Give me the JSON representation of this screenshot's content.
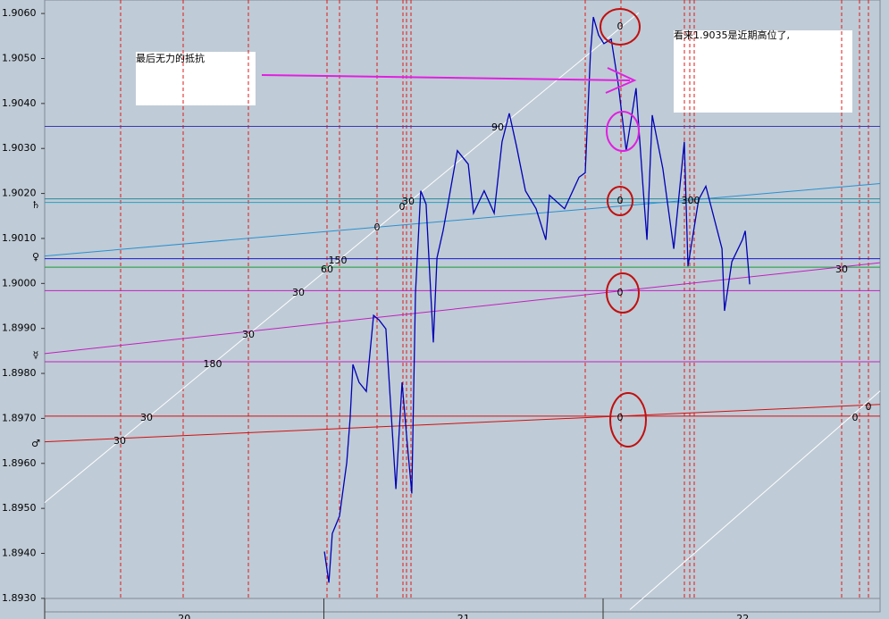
{
  "chart_data": {
    "type": "line",
    "xlim": [
      20,
      22.992
    ],
    "ylim": [
      1.8927,
      1.9063
    ],
    "xticks": [
      20,
      21,
      22
    ],
    "yticks": [
      {
        "value": 1.893,
        "label": "1.8930"
      },
      {
        "value": 1.894,
        "label": "1.8940"
      },
      {
        "value": 1.895,
        "label": "1.8950"
      },
      {
        "value": 1.896,
        "label": "1.8960"
      },
      {
        "value": 1.897,
        "label": "1.8970"
      },
      {
        "value": 1.898,
        "label": "1.8980"
      },
      {
        "value": 1.899,
        "label": "1.8990"
      },
      {
        "value": 1.9,
        "label": "1.9000"
      },
      {
        "value": 1.901,
        "label": "1.9010"
      },
      {
        "value": 1.902,
        "label": "1.9020"
      },
      {
        "value": 1.903,
        "label": "1.9030"
      },
      {
        "value": 1.904,
        "label": "1.9040"
      },
      {
        "value": 1.905,
        "label": "1.9050"
      },
      {
        "value": 1.906,
        "label": "1.9060"
      }
    ],
    "x": [
      21.002,
      21.018,
      21.03,
      21.056,
      21.082,
      21.094,
      21.104,
      21.126,
      21.152,
      21.178,
      21.197,
      21.222,
      21.248,
      21.258,
      21.28,
      21.299,
      21.315,
      21.328,
      21.347,
      21.366,
      21.392,
      21.405,
      21.427,
      21.45,
      21.478,
      21.517,
      21.536,
      21.574,
      21.61,
      21.638,
      21.664,
      21.69,
      21.722,
      21.76,
      21.795,
      21.808,
      21.862,
      21.914,
      21.936,
      21.955,
      21.965,
      21.984,
      22.003,
      22.029,
      22.054,
      22.083,
      22.118,
      22.144,
      22.157,
      22.176,
      22.214,
      22.253,
      22.291,
      22.304,
      22.342,
      22.368,
      22.426,
      22.435,
      22.461,
      22.499,
      22.509,
      22.525
    ],
    "series": [
      {
        "color": "#0000b4",
        "values": [
          1.89404,
          1.89335,
          1.89444,
          1.89483,
          1.89602,
          1.89701,
          1.8982,
          1.8978,
          1.8976,
          1.89929,
          1.89919,
          1.89899,
          1.89642,
          1.89543,
          1.8978,
          1.89642,
          1.89533,
          1.89978,
          1.90206,
          1.90176,
          1.89869,
          1.90057,
          1.90117,
          1.90196,
          1.90295,
          1.90265,
          1.90156,
          1.90206,
          1.90156,
          1.90315,
          1.90378,
          1.90305,
          1.90206,
          1.90166,
          1.90097,
          1.90196,
          1.90166,
          1.90236,
          1.90246,
          1.90513,
          1.90592,
          1.90552,
          1.90533,
          1.90543,
          1.90444,
          1.90295,
          1.90434,
          1.90206,
          1.90097,
          1.90374,
          1.90255,
          1.90077,
          1.90315,
          1.90038,
          1.90186,
          1.90216,
          1.90077,
          1.89939,
          1.90048,
          1.90097,
          1.90117,
          1.89998
        ]
      }
    ],
    "levels": [
      {
        "value": 1.90349,
        "color": "#3a3ab8"
      },
      {
        "value": 1.90188,
        "color": "#2a8a9a"
      },
      {
        "value": 1.9018,
        "color": "#2aa0c0"
      },
      {
        "value": 1.90055,
        "color": "#1a1ad0"
      },
      {
        "value": 1.90036,
        "color": "#1a9a3a"
      },
      {
        "value": 1.89984,
        "color": "#c020c0"
      },
      {
        "value": 1.89826,
        "color": "#c020c0"
      },
      {
        "value": 1.89705,
        "color": "#d01010"
      }
    ],
    "trendlines": [
      {
        "color": "#2a90d0",
        "x": [
          20,
          22.992
        ],
        "y": [
          1.90061,
          1.90222
        ]
      },
      {
        "color": "#c020c0",
        "x": [
          20,
          22.992
        ],
        "y": [
          1.89844,
          1.90046
        ]
      },
      {
        "color": "#d01010",
        "x": [
          20,
          22.992
        ],
        "y": [
          1.89648,
          1.89731
        ]
      },
      {
        "color": "#ffffff",
        "x": [
          20,
          22.128
        ],
        "y": [
          1.89513,
          1.90602
        ]
      },
      {
        "color": "#ffffff",
        "x": [
          22.096,
          22.992
        ],
        "y": [
          1.89275,
          1.89761
        ]
      }
    ],
    "annotations": [
      "0",
      "0",
      "0",
      "0",
      "90",
      "30",
      "0",
      "0",
      "300",
      "150",
      "60",
      "30",
      "30",
      "180",
      "30",
      "30",
      "30",
      "0",
      "0"
    ],
    "notes": [
      "最后无力的抵抗",
      "看来1.9035是近期高位了,"
    ],
    "symbols": [
      "♄",
      "♀",
      "☿",
      "♂"
    ]
  }
}
